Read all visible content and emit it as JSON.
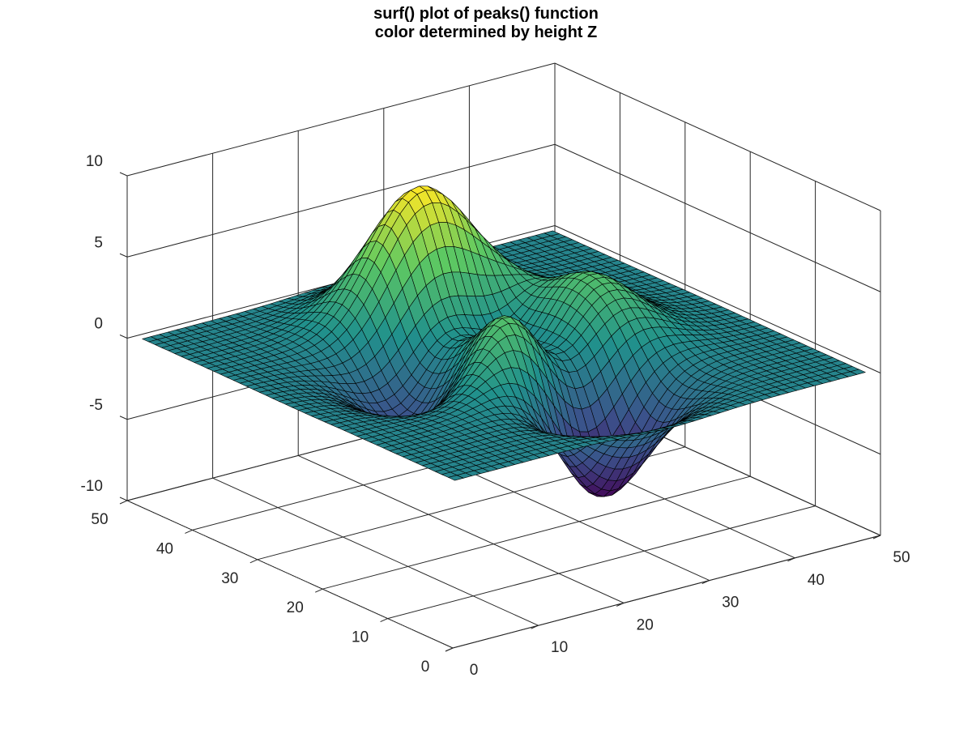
{
  "chart_data": {
    "type": "surface",
    "title": [
      "surf() plot of peaks() function",
      "color determined by height Z"
    ],
    "function": "peaks",
    "grid_size": [
      49,
      49
    ],
    "x_range": [
      1,
      49
    ],
    "y_range": [
      1,
      49
    ],
    "xlim": [
      0,
      50
    ],
    "ylim": [
      0,
      50
    ],
    "zlim": [
      -10,
      10
    ],
    "x_ticks": [
      0,
      10,
      20,
      30,
      40,
      50
    ],
    "y_ticks": [
      0,
      10,
      20,
      30,
      40,
      50
    ],
    "z_ticks": [
      -10,
      -5,
      0,
      5,
      10
    ],
    "grid": true,
    "colormap": "viridis",
    "colormap_stops": [
      "#440154",
      "#3b528b",
      "#21918c",
      "#5ec962",
      "#fde725"
    ],
    "edge_color": "#000000",
    "axis_color": "#262626"
  }
}
